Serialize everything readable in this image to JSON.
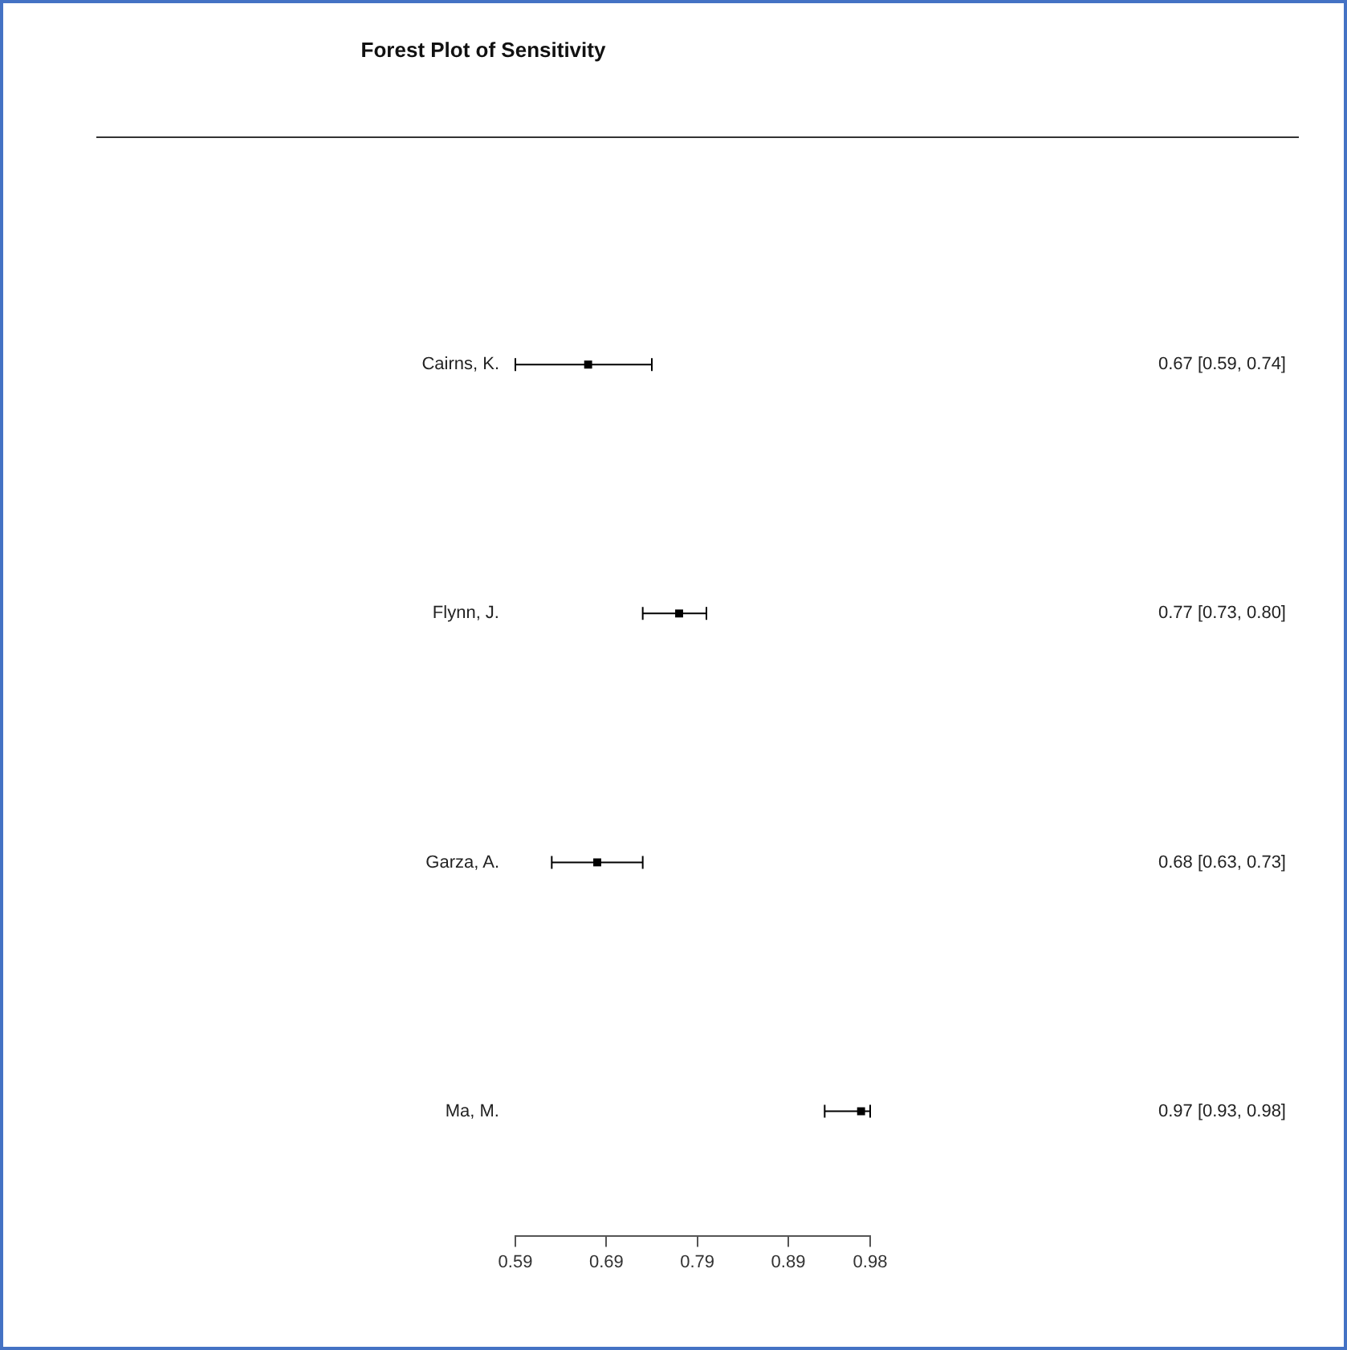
{
  "chart_data": {
    "type": "scatter",
    "title": "Forest Plot of Sensitivity",
    "orientation": "horizontal",
    "categories": [
      "Cairns, K.",
      "Flynn, J.",
      "Garza, A.",
      "Ma, M."
    ],
    "series": [
      {
        "color": "#000000",
        "values": [
          0.67,
          0.77,
          0.68,
          0.97
        ],
        "errors": [
          [
            0.59,
            0.74
          ],
          [
            0.73,
            0.8
          ],
          [
            0.63,
            0.73
          ],
          [
            0.93,
            0.98
          ]
        ],
        "value_labels": [
          "0.67 [0.59, 0.74]",
          "0.77 [0.73, 0.80]",
          "0.68 [0.63, 0.73]",
          "0.97 [0.93, 0.98]"
        ]
      }
    ],
    "xlim": [
      0.59,
      0.98
    ],
    "xticks": [
      {
        "value": 0.59,
        "label": "0.59"
      },
      {
        "value": 0.69,
        "label": "0.69"
      },
      {
        "value": 0.79,
        "label": "0.79"
      },
      {
        "value": 0.89,
        "label": "0.89"
      },
      {
        "value": 0.98,
        "label": "0.98"
      }
    ],
    "marker": "square",
    "grid": false,
    "legend": false
  }
}
